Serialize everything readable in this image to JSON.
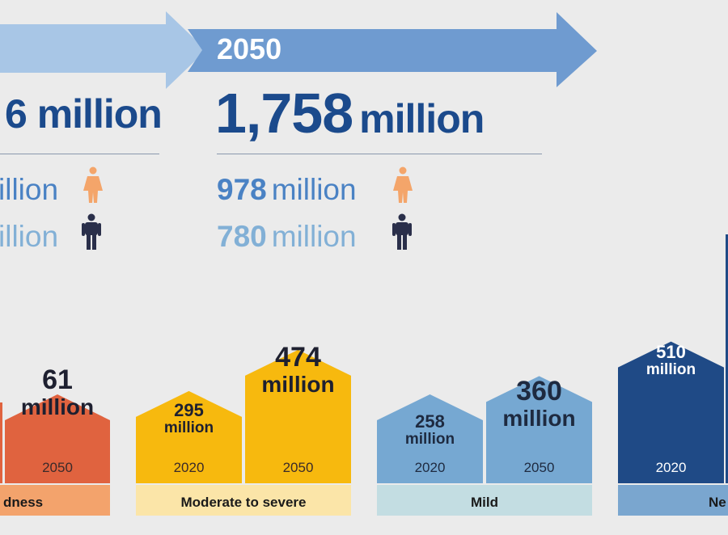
{
  "header": {
    "left_total_partial": "6 million",
    "left_female_partial": "illion",
    "left_male_partial": "illion",
    "year_2050": "2050",
    "total_2050_num": "1,758",
    "total_2050_unit": "million",
    "female_2050_num": "978",
    "female_2050_unit": "million",
    "male_2050_num": "780",
    "male_2050_unit": "million"
  },
  "icons": {
    "female": "female-person-icon",
    "male": "male-person-icon"
  },
  "colors": {
    "arrow_light": "#a8c6e6",
    "arrow_mid": "#6f9bd0",
    "total_text": "#1b4a8c",
    "female_text": "#4a82c4",
    "male_text": "#82b0d6",
    "female_icon": "#f4a56a",
    "male_icon": "#2a2f4a"
  },
  "chart_data": {
    "type": "bar",
    "unit": "million",
    "categories": [
      "…dness",
      "Moderate to severe",
      "Mild",
      "Ne…"
    ],
    "category_labels": [
      "dness",
      "Moderate to severe",
      "Mild",
      "Ne"
    ],
    "years": [
      "2020",
      "2050"
    ],
    "series": [
      {
        "name": "2020",
        "values": [
          null,
          295,
          258,
          510
        ]
      },
      {
        "name": "2050",
        "values": [
          61,
          474,
          360,
          null
        ]
      }
    ],
    "value_labels": {
      "blindness_2050_num": "61",
      "blindness_2050_unit": "million",
      "moderate_2020_num": "295",
      "moderate_2020_unit": "million",
      "moderate_2050_num": "474",
      "moderate_2050_unit": "million",
      "mild_2020_num": "258",
      "mild_2020_unit": "million",
      "mild_2050_num": "360",
      "mild_2050_unit": "million",
      "near_2020_num": "510",
      "near_2020_unit": "million"
    },
    "year_labels": {
      "blindness_2050": "2050",
      "moderate_2020": "2020",
      "moderate_2050": "2050",
      "mild_2020": "2020",
      "mild_2050": "2050",
      "near_2020": "2020"
    },
    "colors": {
      "blindness_bar": "#e0633f",
      "blindness_label_bg": "#f3a36c",
      "moderate_bar": "#f7b90e",
      "moderate_label_bg": "#fbe5a8",
      "mild_bar": "#76a8d2",
      "mild_label_bg": "#c3dde2",
      "near_bar": "#1f4a86",
      "near_label_bg": "#7aa6cf"
    }
  }
}
